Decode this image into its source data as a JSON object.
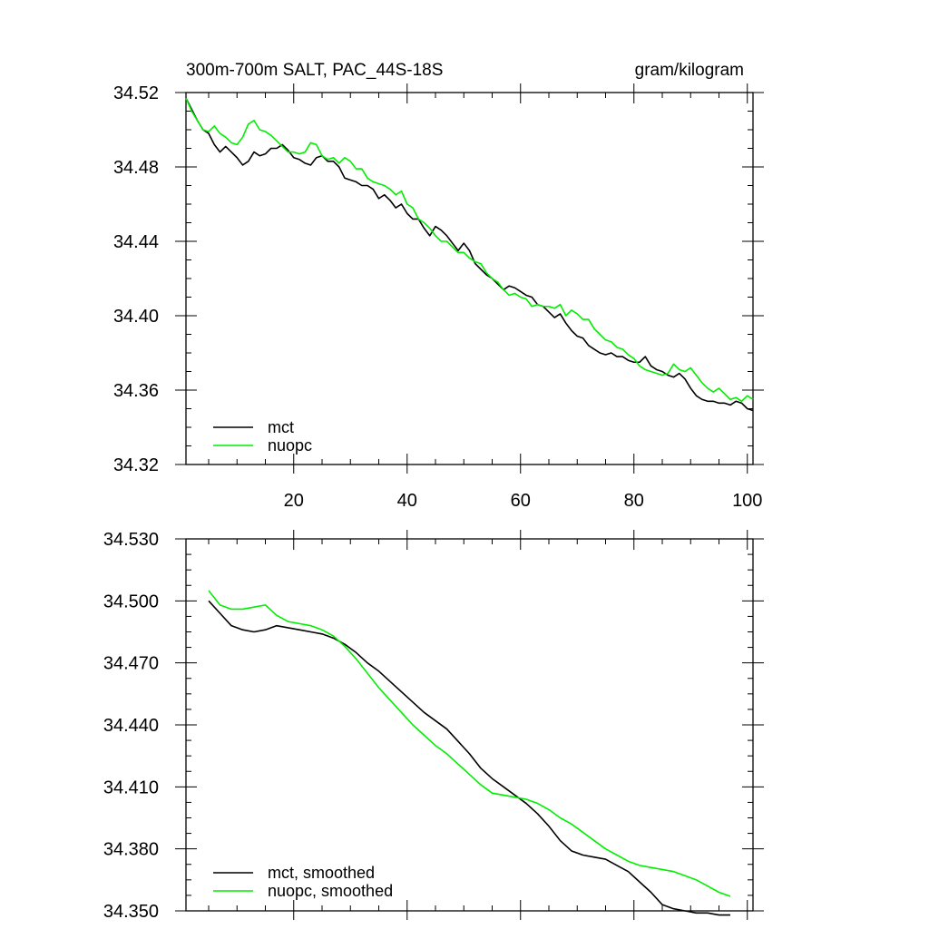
{
  "colors": {
    "mct": "#000000",
    "nuopc": "#00ee00",
    "axis": "#000000",
    "background": "#ffffff"
  },
  "chart_data": [
    {
      "type": "line",
      "title": "300m-700m SALT, PAC_44S-18S",
      "units_label": "gram/kilogram",
      "xlim": [
        1,
        101
      ],
      "ylim": [
        34.32,
        34.52
      ],
      "x_ticks": [
        20,
        40,
        60,
        80,
        100
      ],
      "x_tick_labels": [
        "20",
        "40",
        "60",
        "80",
        "100"
      ],
      "y_ticks": [
        34.32,
        34.36,
        34.4,
        34.44,
        34.48,
        34.52
      ],
      "y_tick_labels": [
        "34.32",
        "34.36",
        "34.40",
        "34.44",
        "34.48",
        "34.52"
      ],
      "legend_position": "bottom-left",
      "series": [
        {
          "name": "mct",
          "color_key": "mct",
          "x_start": 1,
          "values": [
            34.517,
            34.511,
            34.505,
            34.5,
            34.498,
            34.492,
            34.488,
            34.491,
            34.488,
            34.485,
            34.481,
            34.483,
            34.488,
            34.486,
            34.487,
            34.49,
            34.49,
            34.492,
            34.489,
            34.485,
            34.484,
            34.482,
            34.481,
            34.485,
            34.486,
            34.483,
            34.483,
            34.48,
            34.474,
            34.473,
            34.472,
            34.47,
            34.47,
            34.468,
            34.463,
            34.465,
            34.462,
            34.458,
            34.46,
            34.455,
            34.452,
            34.452,
            34.447,
            34.443,
            34.448,
            34.446,
            34.443,
            34.439,
            34.435,
            34.439,
            34.435,
            34.428,
            34.425,
            34.422,
            34.42,
            34.417,
            34.414,
            34.416,
            34.415,
            34.413,
            34.411,
            34.41,
            34.406,
            34.405,
            34.402,
            34.399,
            34.401,
            34.396,
            34.392,
            34.389,
            34.388,
            34.384,
            34.382,
            34.38,
            34.379,
            34.38,
            34.378,
            34.378,
            34.376,
            34.375,
            34.375,
            34.378,
            34.373,
            34.371,
            34.37,
            34.368,
            34.367,
            34.369,
            34.366,
            34.361,
            34.357,
            34.355,
            34.354,
            34.354,
            34.353,
            34.353,
            34.352,
            34.354,
            34.353,
            34.35,
            34.349
          ]
        },
        {
          "name": "nuopc",
          "color_key": "nuopc",
          "x_start": 1,
          "values": [
            34.517,
            34.51,
            34.505,
            34.5,
            34.499,
            34.502,
            34.498,
            34.496,
            34.493,
            34.492,
            34.496,
            34.503,
            34.505,
            34.5,
            34.499,
            34.497,
            34.494,
            34.491,
            34.488,
            34.488,
            34.487,
            34.488,
            34.493,
            34.492,
            34.486,
            34.484,
            34.485,
            34.482,
            34.485,
            34.483,
            34.479,
            34.479,
            34.474,
            34.472,
            34.471,
            34.47,
            34.468,
            34.465,
            34.467,
            34.46,
            34.458,
            34.452,
            34.45,
            34.447,
            34.443,
            34.44,
            34.44,
            34.437,
            34.434,
            34.434,
            34.431,
            34.429,
            34.428,
            34.423,
            34.42,
            34.418,
            34.414,
            34.411,
            34.412,
            34.41,
            34.409,
            34.405,
            34.406,
            34.405,
            34.405,
            34.404,
            34.406,
            34.4,
            34.403,
            34.401,
            34.398,
            34.398,
            34.393,
            34.39,
            34.387,
            34.386,
            34.383,
            34.382,
            34.379,
            34.377,
            34.373,
            34.371,
            34.37,
            34.369,
            34.368,
            34.369,
            34.374,
            34.371,
            34.37,
            34.372,
            34.368,
            34.364,
            34.361,
            34.359,
            34.361,
            34.358,
            34.355,
            34.356,
            34.354,
            34.357,
            34.355
          ]
        }
      ]
    },
    {
      "type": "line",
      "xlim": [
        1,
        101
      ],
      "ylim": [
        34.35,
        34.53
      ],
      "x_ticks": [
        20,
        40,
        60,
        80,
        100
      ],
      "x_tick_labels": [],
      "y_ticks": [
        34.35,
        34.38,
        34.41,
        34.44,
        34.47,
        34.5,
        34.53
      ],
      "y_tick_labels": [
        "34.350",
        "34.380",
        "34.410",
        "34.440",
        "34.470",
        "34.500",
        "34.530"
      ],
      "legend_position": "bottom-left",
      "series": [
        {
          "name": "mct, smoothed",
          "color_key": "mct",
          "x": [
            5,
            7,
            9,
            11,
            13,
            15,
            17,
            19,
            21,
            23,
            25,
            27,
            29,
            31,
            33,
            35,
            37,
            39,
            41,
            43,
            45,
            47,
            49,
            51,
            53,
            55,
            57,
            59,
            61,
            63,
            65,
            67,
            69,
            71,
            73,
            75,
            77,
            79,
            81,
            83,
            85,
            87,
            89,
            91,
            93,
            95,
            97
          ],
          "values": [
            34.5,
            34.494,
            34.488,
            34.486,
            34.485,
            34.486,
            34.488,
            34.487,
            34.486,
            34.485,
            34.484,
            34.482,
            34.479,
            34.475,
            34.47,
            34.466,
            34.461,
            34.456,
            34.451,
            34.446,
            34.442,
            34.438,
            34.432,
            34.426,
            34.419,
            34.414,
            34.41,
            34.406,
            34.402,
            34.397,
            34.391,
            34.384,
            34.379,
            34.377,
            34.376,
            34.375,
            34.372,
            34.369,
            34.364,
            34.359,
            34.353,
            34.351,
            34.35,
            34.349,
            34.349,
            34.348,
            34.348
          ]
        },
        {
          "name": "nuopc, smoothed",
          "color_key": "nuopc",
          "x": [
            5,
            7,
            9,
            11,
            13,
            15,
            17,
            19,
            21,
            23,
            25,
            27,
            29,
            31,
            33,
            35,
            37,
            39,
            41,
            43,
            45,
            47,
            49,
            51,
            53,
            55,
            57,
            59,
            61,
            63,
            65,
            67,
            69,
            71,
            73,
            75,
            77,
            79,
            81,
            83,
            85,
            87,
            89,
            91,
            93,
            95,
            97
          ],
          "values": [
            34.505,
            34.498,
            34.496,
            34.496,
            34.497,
            34.498,
            34.493,
            34.49,
            34.489,
            34.488,
            34.486,
            34.483,
            34.478,
            34.472,
            34.465,
            34.458,
            34.452,
            34.446,
            34.44,
            34.435,
            34.43,
            34.426,
            34.421,
            34.416,
            34.411,
            34.407,
            34.406,
            34.405,
            34.404,
            34.402,
            34.399,
            34.395,
            34.392,
            34.388,
            34.384,
            34.38,
            34.377,
            34.374,
            34.372,
            34.371,
            34.37,
            34.369,
            34.367,
            34.365,
            34.362,
            34.359,
            34.357
          ]
        }
      ]
    }
  ]
}
